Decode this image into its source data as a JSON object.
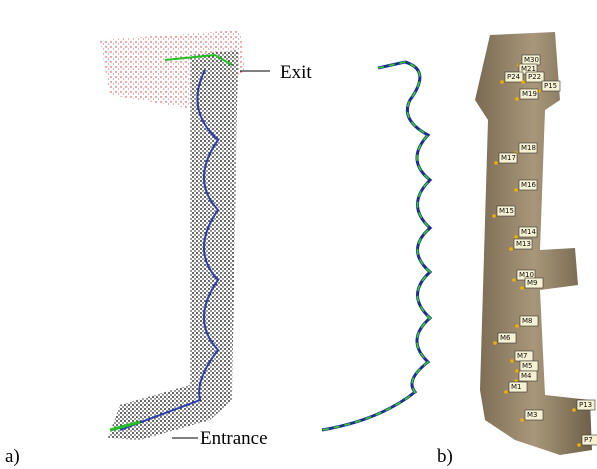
{
  "annotations": {
    "exit": "Exit",
    "entrance": "Entrance",
    "panel_a": "a)",
    "panel_b": "b)"
  },
  "markers": [
    "M30",
    "M21",
    "P24",
    "P22",
    "P15",
    "M19",
    "M18",
    "M17",
    "M16",
    "M15",
    "M14",
    "M13",
    "M10",
    "M9",
    "M8",
    "M6",
    "M7",
    "M5",
    "M4",
    "M1",
    "M3",
    "P13",
    "P7"
  ]
}
